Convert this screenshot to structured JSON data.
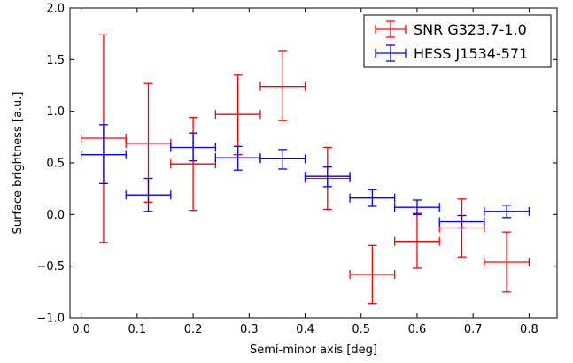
{
  "chart_data": {
    "type": "scatter",
    "xlabel": "Semi-minor axis [deg]",
    "ylabel": "Surface brightness [a.u.]",
    "xlim": [
      -0.02,
      0.85
    ],
    "ylim": [
      -1.0,
      2.0
    ],
    "xticks": [
      0.0,
      0.1,
      0.2,
      0.3,
      0.4,
      0.5,
      0.6,
      0.7,
      0.8
    ],
    "yticks": [
      -1.0,
      -0.5,
      0.0,
      0.5,
      1.0,
      1.5,
      2.0
    ],
    "xtick_labels": [
      "0.0",
      "0.1",
      "0.2",
      "0.3",
      "0.4",
      "0.5",
      "0.6",
      "0.7",
      "0.8"
    ],
    "ytick_labels": [
      "−1.0",
      "−0.5",
      "0.0",
      "0.5",
      "1.0",
      "1.5",
      "2.0"
    ],
    "grid": false,
    "legend_position": "top-right",
    "series": [
      {
        "name": "SNR G323.7-1.0",
        "color": "#ff0000",
        "points": [
          {
            "x": 0.04,
            "y": 0.74,
            "xerr": 0.04,
            "ylo": -0.27,
            "yhi": 1.74
          },
          {
            "x": 0.12,
            "y": 0.69,
            "xerr": 0.04,
            "ylo": 0.12,
            "yhi": 1.27
          },
          {
            "x": 0.2,
            "y": 0.49,
            "xerr": 0.04,
            "ylo": 0.04,
            "yhi": 0.94
          },
          {
            "x": 0.28,
            "y": 0.97,
            "xerr": 0.04,
            "ylo": 0.58,
            "yhi": 1.35
          },
          {
            "x": 0.36,
            "y": 1.24,
            "xerr": 0.04,
            "ylo": 0.91,
            "yhi": 1.58
          },
          {
            "x": 0.44,
            "y": 0.35,
            "xerr": 0.04,
            "ylo": 0.05,
            "yhi": 0.65
          },
          {
            "x": 0.52,
            "y": -0.58,
            "xerr": 0.04,
            "ylo": -0.86,
            "yhi": -0.3
          },
          {
            "x": 0.6,
            "y": -0.26,
            "xerr": 0.04,
            "ylo": -0.52,
            "yhi": 0.01
          },
          {
            "x": 0.68,
            "y": -0.13,
            "xerr": 0.04,
            "ylo": -0.41,
            "yhi": 0.15
          },
          {
            "x": 0.76,
            "y": -0.46,
            "xerr": 0.04,
            "ylo": -0.75,
            "yhi": -0.17
          }
        ]
      },
      {
        "name": "HESS J1534-571",
        "color": "#0000ff",
        "points": [
          {
            "x": 0.04,
            "y": 0.58,
            "xerr": 0.04,
            "ylo": 0.3,
            "yhi": 0.87
          },
          {
            "x": 0.12,
            "y": 0.19,
            "xerr": 0.04,
            "ylo": 0.03,
            "yhi": 0.35
          },
          {
            "x": 0.2,
            "y": 0.65,
            "xerr": 0.04,
            "ylo": 0.52,
            "yhi": 0.79
          },
          {
            "x": 0.28,
            "y": 0.55,
            "xerr": 0.04,
            "ylo": 0.43,
            "yhi": 0.66
          },
          {
            "x": 0.36,
            "y": 0.54,
            "xerr": 0.04,
            "ylo": 0.44,
            "yhi": 0.63
          },
          {
            "x": 0.44,
            "y": 0.37,
            "xerr": 0.04,
            "ylo": 0.27,
            "yhi": 0.46
          },
          {
            "x": 0.52,
            "y": 0.16,
            "xerr": 0.04,
            "ylo": 0.08,
            "yhi": 0.24
          },
          {
            "x": 0.6,
            "y": 0.07,
            "xerr": 0.04,
            "ylo": 0.0,
            "yhi": 0.14
          },
          {
            "x": 0.68,
            "y": -0.07,
            "xerr": 0.04,
            "ylo": -0.13,
            "yhi": -0.01
          },
          {
            "x": 0.76,
            "y": 0.03,
            "xerr": 0.04,
            "ylo": -0.03,
            "yhi": 0.09
          }
        ]
      }
    ]
  }
}
